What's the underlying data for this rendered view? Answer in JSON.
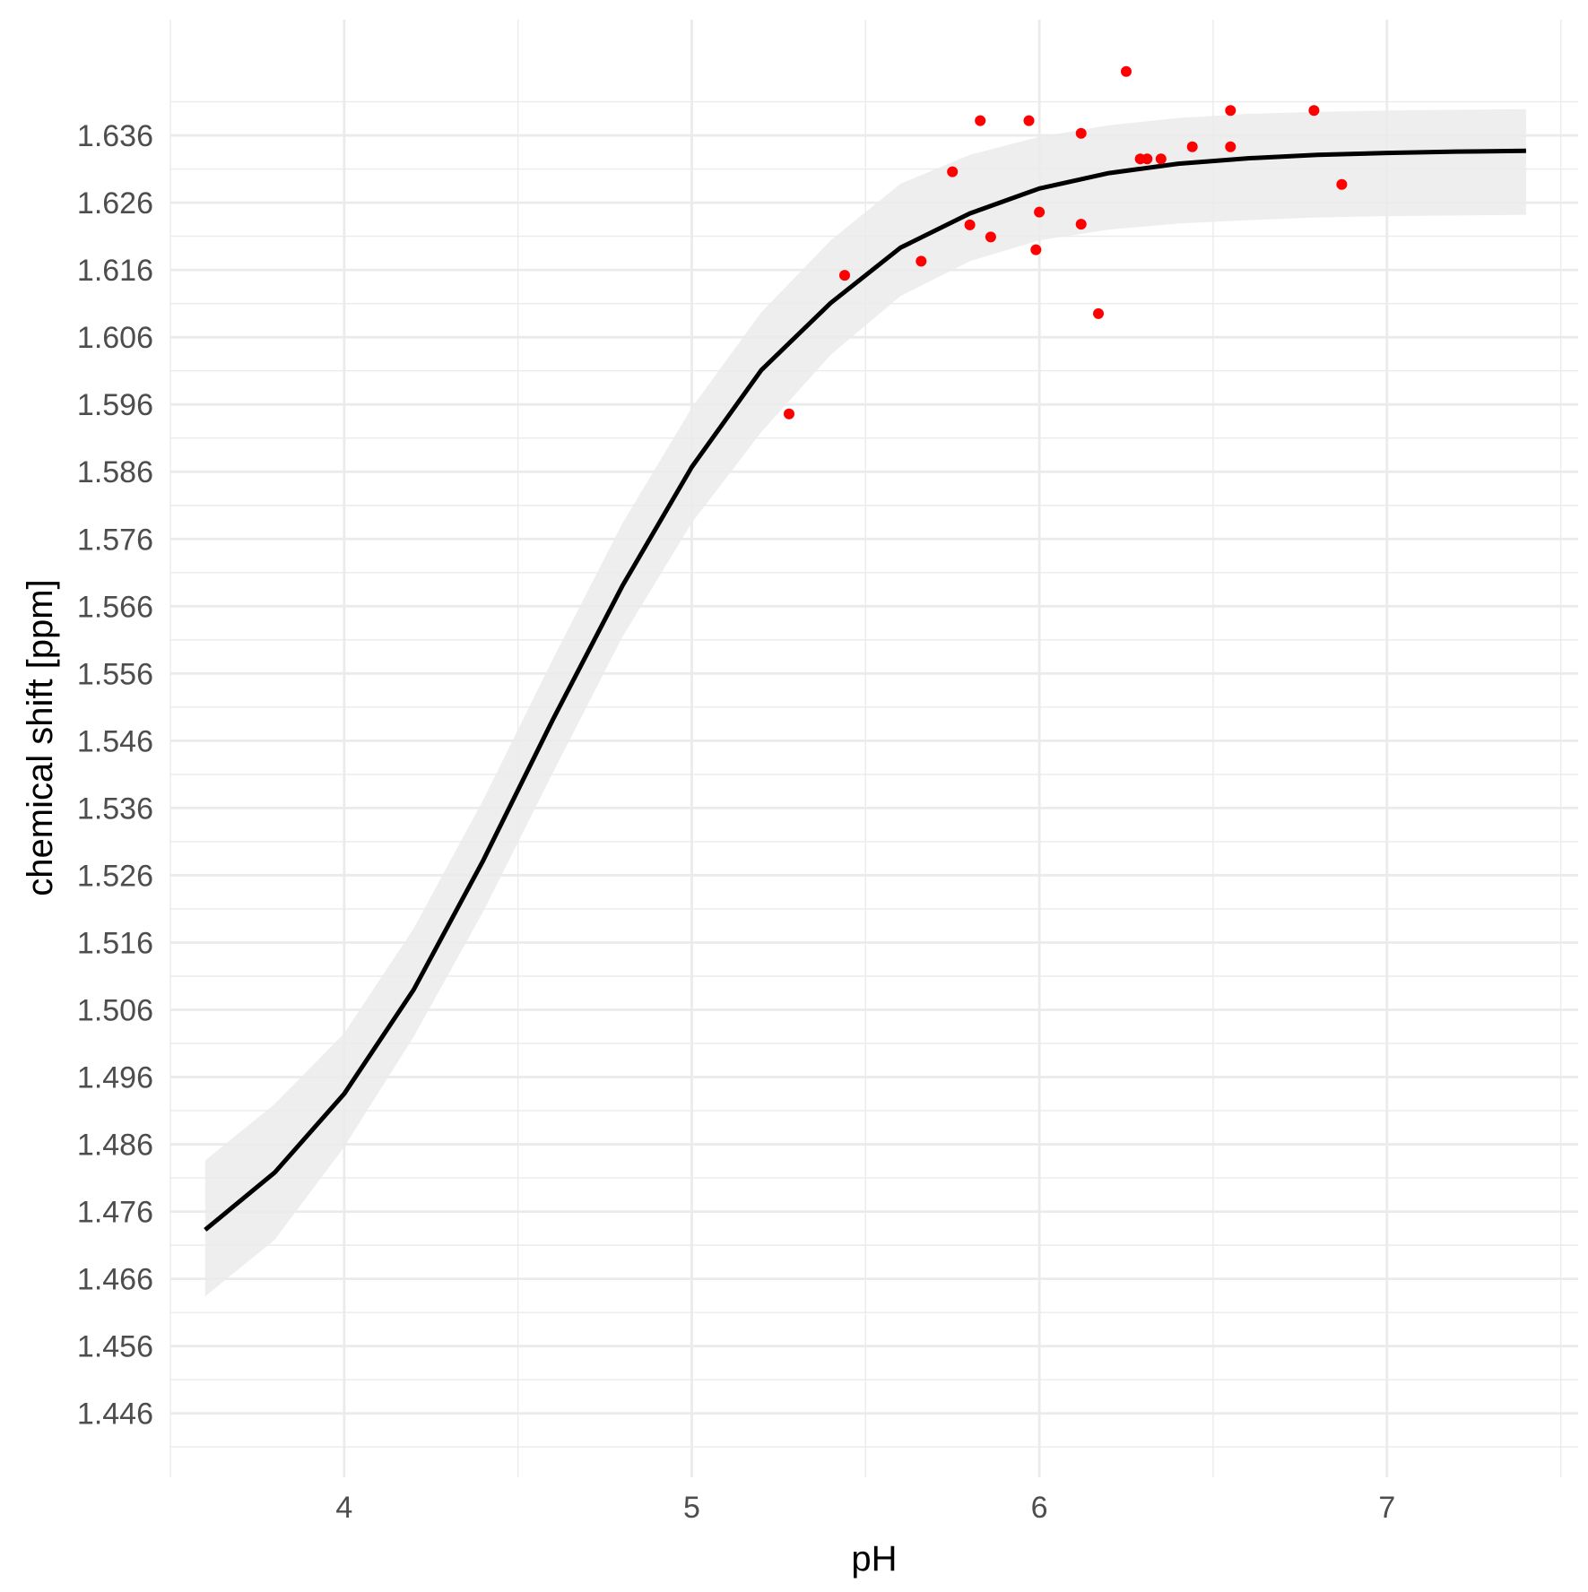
{
  "chart_data": {
    "type": "scatter",
    "xlabel": "pH",
    "ylabel": "chemical shift [ppm]",
    "xlim": [
      3.5,
      7.55
    ],
    "ylim": [
      1.4365,
      1.6532
    ],
    "x_ticks": [
      4,
      5,
      6,
      7
    ],
    "x_tick_labels": [
      "4",
      "5",
      "6",
      "7"
    ],
    "y_ticks": [
      1.446,
      1.456,
      1.466,
      1.476,
      1.486,
      1.496,
      1.506,
      1.516,
      1.526,
      1.536,
      1.546,
      1.556,
      1.566,
      1.576,
      1.586,
      1.596,
      1.606,
      1.616,
      1.626,
      1.636
    ],
    "y_tick_labels": [
      "1.446",
      "1.456",
      "1.466",
      "1.476",
      "1.486",
      "1.496",
      "1.506",
      "1.516",
      "1.526",
      "1.536",
      "1.546",
      "1.556",
      "1.566",
      "1.576",
      "1.586",
      "1.596",
      "1.606",
      "1.616",
      "1.626",
      "1.636"
    ],
    "grid": true,
    "legend": "none",
    "points": {
      "color": "#ff0000",
      "x": [
        5.28,
        5.44,
        5.66,
        5.75,
        5.8,
        5.83,
        5.86,
        5.97,
        5.99,
        6.0,
        6.12,
        6.12,
        6.17,
        6.25,
        6.29,
        6.31,
        6.35,
        6.44,
        6.55,
        6.55,
        6.79,
        6.87
      ],
      "y": [
        1.5946,
        1.6152,
        1.6173,
        1.6306,
        1.6227,
        1.6382,
        1.6209,
        1.6382,
        1.619,
        1.6246,
        1.6363,
        1.6228,
        1.6095,
        1.6455,
        1.6325,
        1.6325,
        1.6325,
        1.6343,
        1.6397,
        1.6343,
        1.6397,
        1.6287
      ]
    },
    "fit": {
      "color": "#000000",
      "x": [
        3.6,
        3.8,
        4.0,
        4.2,
        4.4,
        4.6,
        4.8,
        5.0,
        5.2,
        5.4,
        5.6,
        5.8,
        6.0,
        6.2,
        6.4,
        6.6,
        6.8,
        7.0,
        7.2,
        7.4
      ],
      "y": [
        1.4733,
        1.4818,
        1.4935,
        1.509,
        1.5282,
        1.5491,
        1.569,
        1.5867,
        1.6011,
        1.6111,
        1.6193,
        1.6244,
        1.6281,
        1.6304,
        1.6318,
        1.6326,
        1.6331,
        1.6334,
        1.6336,
        1.6337
      ],
      "band_lower": [
        1.4634,
        1.4718,
        1.4856,
        1.502,
        1.5206,
        1.5412,
        1.5614,
        1.5784,
        1.5919,
        1.6034,
        1.6121,
        1.6173,
        1.6204,
        1.622,
        1.6229,
        1.6234,
        1.6238,
        1.624,
        1.6241,
        1.6242
      ],
      "band_upper": [
        1.4836,
        1.492,
        1.5025,
        1.5181,
        1.5372,
        1.5581,
        1.5783,
        1.5955,
        1.6097,
        1.6204,
        1.6288,
        1.6331,
        1.6358,
        1.6375,
        1.6386,
        1.6392,
        1.6395,
        1.6397,
        1.6398,
        1.6399
      ],
      "band_color": "#ebebeb"
    }
  }
}
